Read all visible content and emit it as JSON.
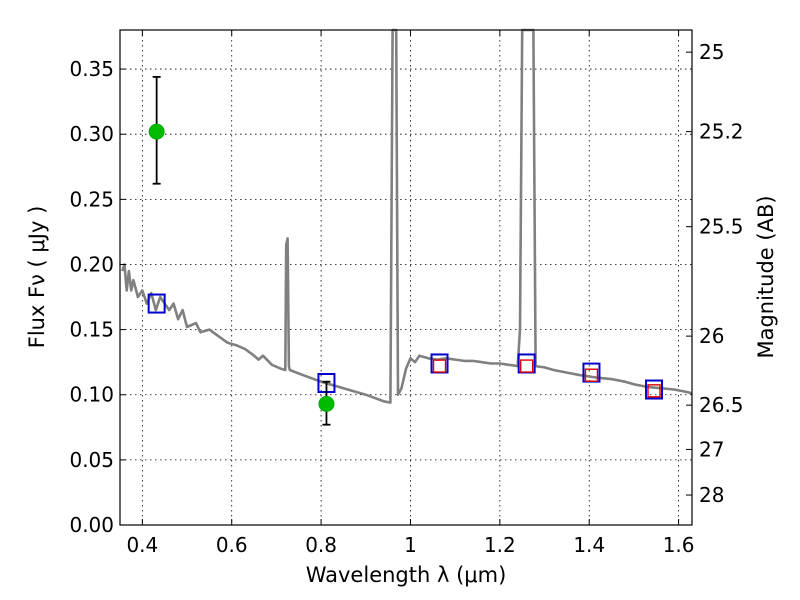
{
  "chart_data": {
    "type": "line",
    "title": "",
    "xlabel": "Wavelength  λ (μm)",
    "ylabel": "Flux  Fν ( μJy )",
    "y2label": "Magnitude (AB)",
    "xlim": [
      0.35,
      1.63
    ],
    "ylim": [
      0.0,
      0.38
    ],
    "grid": true,
    "x_ticks": [
      {
        "value": 0.4,
        "label": "0.4"
      },
      {
        "value": 0.6,
        "label": "0.6"
      },
      {
        "value": 0.8,
        "label": "0.8"
      },
      {
        "value": 1.0,
        "label": "1"
      },
      {
        "value": 1.2,
        "label": "1.2"
      },
      {
        "value": 1.4,
        "label": "1.4"
      },
      {
        "value": 1.6,
        "label": "1.6"
      }
    ],
    "y_ticks": [
      {
        "value": 0.0,
        "label": "0.00"
      },
      {
        "value": 0.05,
        "label": "0.05"
      },
      {
        "value": 0.1,
        "label": "0.10"
      },
      {
        "value": 0.15,
        "label": "0.15"
      },
      {
        "value": 0.2,
        "label": "0.20"
      },
      {
        "value": 0.25,
        "label": "0.25"
      },
      {
        "value": 0.3,
        "label": "0.30"
      },
      {
        "value": 0.35,
        "label": "0.35"
      }
    ],
    "y2_ticks": [
      {
        "flux": 0.363,
        "label": "25"
      },
      {
        "flux": 0.302,
        "label": "25.2"
      },
      {
        "flux": 0.229,
        "label": "25.5"
      },
      {
        "flux": 0.145,
        "label": "26"
      },
      {
        "flux": 0.092,
        "label": "26.5"
      },
      {
        "flux": 0.058,
        "label": "27"
      },
      {
        "flux": 0.023,
        "label": "28"
      }
    ],
    "series": [
      {
        "kind": "template_spectrum",
        "color": "#808080",
        "points": [
          [
            0.355,
            0.195
          ],
          [
            0.36,
            0.2
          ],
          [
            0.365,
            0.18
          ],
          [
            0.37,
            0.195
          ],
          [
            0.375,
            0.18
          ],
          [
            0.38,
            0.188
          ],
          [
            0.39,
            0.175
          ],
          [
            0.4,
            0.18
          ],
          [
            0.41,
            0.17
          ],
          [
            0.42,
            0.178
          ],
          [
            0.43,
            0.165
          ],
          [
            0.44,
            0.175
          ],
          [
            0.45,
            0.17
          ],
          [
            0.46,
            0.165
          ],
          [
            0.47,
            0.17
          ],
          [
            0.48,
            0.158
          ],
          [
            0.49,
            0.165
          ],
          [
            0.5,
            0.152
          ],
          [
            0.52,
            0.155
          ],
          [
            0.53,
            0.148
          ],
          [
            0.55,
            0.15
          ],
          [
            0.57,
            0.145
          ],
          [
            0.59,
            0.14
          ],
          [
            0.61,
            0.138
          ],
          [
            0.63,
            0.135
          ],
          [
            0.65,
            0.13
          ],
          [
            0.66,
            0.127
          ],
          [
            0.67,
            0.13
          ],
          [
            0.69,
            0.123
          ],
          [
            0.71,
            0.12
          ],
          [
            0.72,
            0.119
          ],
          [
            0.722,
            0.215
          ],
          [
            0.725,
            0.22
          ],
          [
            0.728,
            0.122
          ],
          [
            0.73,
            0.119
          ],
          [
            0.76,
            0.115
          ],
          [
            0.8,
            0.11
          ],
          [
            0.85,
            0.105
          ],
          [
            0.9,
            0.1
          ],
          [
            0.94,
            0.095
          ],
          [
            0.955,
            0.094
          ],
          [
            0.96,
            0.4
          ],
          [
            0.968,
            0.4
          ],
          [
            0.972,
            0.1
          ],
          [
            0.98,
            0.105
          ],
          [
            0.99,
            0.12
          ],
          [
            1.0,
            0.128
          ],
          [
            1.01,
            0.125
          ],
          [
            1.02,
            0.13
          ],
          [
            1.04,
            0.128
          ],
          [
            1.06,
            0.127
          ],
          [
            1.08,
            0.128
          ],
          [
            1.1,
            0.127
          ],
          [
            1.12,
            0.126
          ],
          [
            1.14,
            0.126
          ],
          [
            1.16,
            0.125
          ],
          [
            1.18,
            0.124
          ],
          [
            1.2,
            0.124
          ],
          [
            1.22,
            0.123
          ],
          [
            1.24,
            0.122
          ],
          [
            1.245,
            0.15
          ],
          [
            1.25,
            0.4
          ],
          [
            1.275,
            0.4
          ],
          [
            1.28,
            0.122
          ],
          [
            1.3,
            0.121
          ],
          [
            1.32,
            0.119
          ],
          [
            1.35,
            0.117
          ],
          [
            1.38,
            0.115
          ],
          [
            1.4,
            0.114
          ],
          [
            1.42,
            0.113
          ],
          [
            1.45,
            0.112
          ],
          [
            1.48,
            0.11
          ],
          [
            1.5,
            0.108
          ],
          [
            1.53,
            0.106
          ],
          [
            1.56,
            0.105
          ],
          [
            1.59,
            0.104
          ],
          [
            1.62,
            0.102
          ],
          [
            1.63,
            0.101
          ]
        ]
      },
      {
        "kind": "model_photometry_blue_squares",
        "color": "#0000cc",
        "points": [
          [
            0.432,
            0.17
          ],
          [
            0.812,
            0.109
          ],
          [
            1.065,
            0.124
          ],
          [
            1.26,
            0.124
          ],
          [
            1.405,
            0.117
          ],
          [
            1.545,
            0.104
          ]
        ]
      },
      {
        "kind": "observed_synthetic_red_squares",
        "color": "#dd0000",
        "points": [
          [
            1.065,
            0.122
          ],
          [
            1.26,
            0.122
          ],
          [
            1.405,
            0.115
          ],
          [
            1.545,
            0.103
          ]
        ]
      },
      {
        "kind": "observed_detections_green",
        "color": "#00bb00",
        "points": [
          {
            "x": 0.432,
            "y": 0.302,
            "err_low": 0.262,
            "err_high": 0.344
          },
          {
            "x": 0.812,
            "y": 0.093,
            "err_low": 0.077,
            "err_high": 0.11
          }
        ]
      }
    ]
  }
}
